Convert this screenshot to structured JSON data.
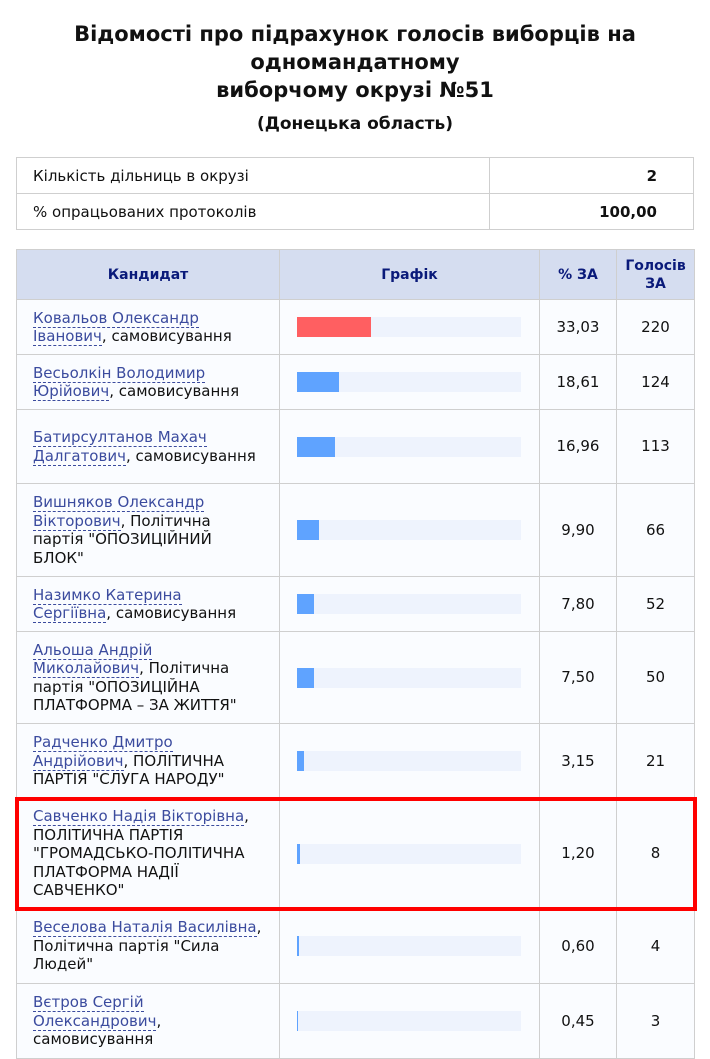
{
  "title_lines": [
    "Відомості про підрахунок голосів виборців на",
    "одномандатному",
    "виборчому окрузі №51"
  ],
  "subtitle": "(Донецька область)",
  "info": [
    {
      "label": "Кількість дільниць в окрузі",
      "value": "2"
    },
    {
      "label": "% опрацьованих протоколів",
      "value": "100,00"
    }
  ],
  "headers": {
    "candidate": "Кандидат",
    "chart": "Графік",
    "pct": "% ЗА",
    "votes": "Голосів ЗА"
  },
  "colors": {
    "leader": "#ff5f61",
    "bar": "#5fa3ff",
    "track": "#eef3fd",
    "highlight": "#ff0000"
  },
  "rows": [
    {
      "name": "Ковальов Олександр Іванович",
      "party": ", самовисування",
      "pct": "33,03",
      "votes": "220",
      "pct_value": 33.03
    },
    {
      "name": "Весьолкін Володимир Юрійович",
      "party": ", самовисування",
      "pct": "18,61",
      "votes": "124",
      "pct_value": 18.61
    },
    {
      "name": "Батирсултанов Махач Далгатович",
      "party": ", самовисування",
      "pct": "16,96",
      "votes": "113",
      "pct_value": 16.96
    },
    {
      "name": "Вишняков Олександр Вікторович",
      "party": ", Політична партія \"ОПОЗИЦІЙНИЙ БЛОК\"",
      "pct": "9,90",
      "votes": "66",
      "pct_value": 9.9
    },
    {
      "name": "Назимко Катерина Сергіївна",
      "party": ", самовисування",
      "pct": "7,80",
      "votes": "52",
      "pct_value": 7.8
    },
    {
      "name": "Альоша Андрій Миколайович",
      "party": ", Політична партія \"ОПОЗИЦІЙНА ПЛАТФОРМА – ЗА ЖИТТЯ\"",
      "pct": "7,50",
      "votes": "50",
      "pct_value": 7.5
    },
    {
      "name": "Радченко Дмитро Андрійович",
      "party": ", ПОЛІТИЧНА ПАРТІЯ \"СЛУГА НАРОДУ\"",
      "pct": "3,15",
      "votes": "21",
      "pct_value": 3.15
    },
    {
      "name": "Савченко Надія Вікторівна",
      "party": ", ПОЛІТИЧНА ПАРТІЯ \"ГРОМАДСЬКО-ПОЛІТИЧНА ПЛАТФОРМА НАДІЇ САВЧЕНКО\"",
      "pct": "1,20",
      "votes": "8",
      "pct_value": 1.2,
      "highlighted": true
    },
    {
      "name": "Веселова Наталія Василівна",
      "party": ", Політична партія \"Сила Людей\"",
      "pct": "0,60",
      "votes": "4",
      "pct_value": 0.6
    },
    {
      "name": "Вєтров Сергій Олександрович",
      "party": ", самовисування",
      "pct": "0,45",
      "votes": "3",
      "pct_value": 0.45
    }
  ]
}
